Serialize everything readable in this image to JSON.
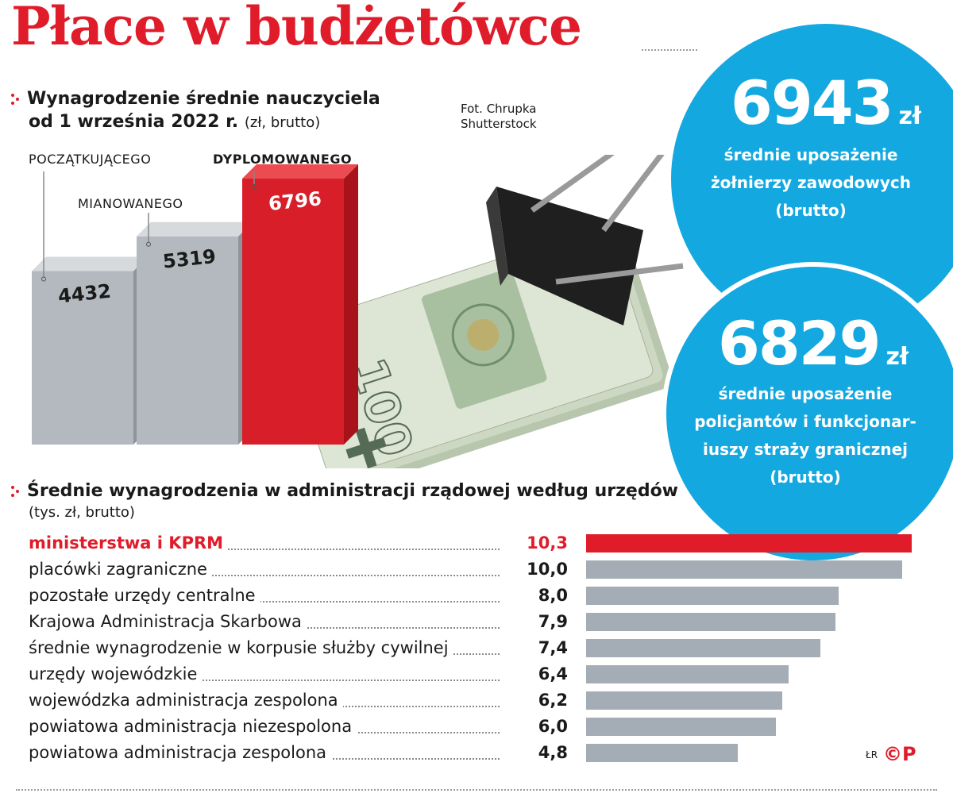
{
  "title": "Płace w budżetówce",
  "photo_credit": "Fot. Chrupka Shutterstock",
  "section1": {
    "title_line1": "Wynagrodzenie średnie nauczyciela",
    "title_line2": "od 1 września 2022 r.",
    "unit": "(zł, brutto)"
  },
  "section2": {
    "title": "Średnie wynagrodzenia w administracji rządowej według urzędów",
    "unit": "(tys. zł, brutto)"
  },
  "circles": [
    {
      "value": "6943",
      "unit": "zł",
      "lines": [
        "średnie uposażenie",
        "żołnierzy zawodowych",
        "(brutto)"
      ]
    },
    {
      "value": "6829",
      "unit": "zł",
      "lines": [
        "średnie uposażenie",
        "policjantów i funkcjonar-",
        "iuszy straży granicznej",
        "(brutto)"
      ]
    }
  ],
  "signature": "ŁR",
  "logo_text": "©P",
  "colors": {
    "accent": "#e01b2a",
    "grey_bar": "#a4adb5",
    "circle": "#14a8e0"
  },
  "chart_data": [
    {
      "type": "bar",
      "categories": [
        "POCZĄTKUJĄCEGO",
        "MIANOWANEGO",
        "DYPLOMOWANEGO"
      ],
      "values": [
        4432,
        5319,
        6796
      ],
      "value_labels": [
        "4432",
        "5319",
        "6796"
      ],
      "highlight": "DYPLOMOWANEGO"
    },
    {
      "type": "bar",
      "orientation": "horizontal",
      "categories": [
        "ministerstwa i KPRM",
        "placówki zagraniczne",
        "pozostałe urzędy centralne",
        "Krajowa Administracja Skarbowa",
        "średnie wynagrodzenie w korpusie służby cywilnej",
        "urzędy wojewódzkie",
        "wojewódzka administracja zespolona",
        "powiatowa administracja niezespolona",
        "powiatowa administracja zespolona"
      ],
      "values": [
        10.3,
        10.0,
        8.0,
        7.9,
        7.4,
        6.4,
        6.2,
        6.0,
        4.8
      ],
      "value_labels": [
        "10,3",
        "10,0",
        "8,0",
        "7,9",
        "7,4",
        "6,4",
        "6,2",
        "6,0",
        "4,8"
      ],
      "highlight": "ministerstwa i KPRM"
    }
  ]
}
